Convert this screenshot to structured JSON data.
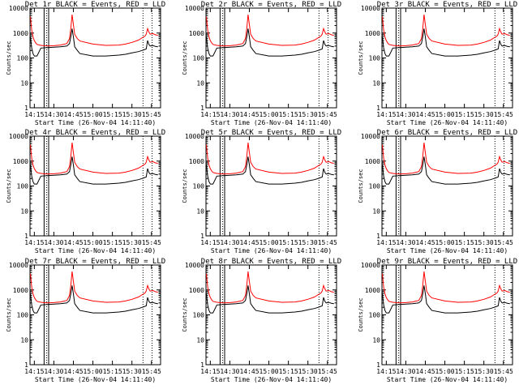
{
  "chart_data": {
    "type": "line",
    "x_units": "time (HH:MM, 26-Nov-04)",
    "xlim": [
      "14:11:40",
      "15:52:00"
    ],
    "ylim": [
      1,
      10000
    ],
    "y_scale": "log",
    "y_ticks": [
      "1",
      "10",
      "100",
      "1000",
      "10000"
    ],
    "x_ticks": [
      "14:15",
      "14:30",
      "14:45",
      "15:00",
      "15:15",
      "15:30",
      "15:45"
    ],
    "ylabel": "Counts/sec",
    "xlabel": "Start Time (26-Nov-04 14:11:40)",
    "grid": false,
    "legend": "in title",
    "series_colors": {
      "events": "#000000",
      "lld": "#ff0000"
    },
    "markers": {
      "solid": [
        "14:22:30",
        "14:26:00"
      ],
      "dotted": [
        "14:24:30",
        "15:38:30",
        "15:45:30"
      ]
    },
    "sample_times": [
      "14:12",
      "14:13",
      "14:14",
      "14:15",
      "14:16",
      "14:17",
      "14:20",
      "14:25",
      "14:30",
      "14:35",
      "14:40",
      "14:42",
      "14:43",
      "14:44",
      "14:45",
      "14:46",
      "14:48",
      "14:50",
      "15:00",
      "15:10",
      "15:20",
      "15:25",
      "15:30",
      "15:35",
      "15:38",
      "15:40",
      "15:41",
      "15:42",
      "15:43",
      "15:44",
      "15:46",
      "15:48",
      "15:50"
    ],
    "panels": [
      {
        "title": "Det 1r BLACK = Events, RED = LLD",
        "lld": [
          4500,
          1300,
          700,
          500,
          400,
          350,
          320,
          300,
          310,
          330,
          380,
          600,
          1500,
          5500,
          2200,
          900,
          600,
          480,
          360,
          320,
          330,
          360,
          420,
          520,
          650,
          750,
          900,
          1500,
          1100,
          900,
          950,
          850,
          800
        ],
        "events": [
          700,
          250,
          150,
          120,
          120,
          120,
          250,
          260,
          270,
          280,
          300,
          380,
          700,
          1500,
          700,
          280,
          200,
          150,
          120,
          120,
          130,
          140,
          160,
          180,
          200,
          220,
          230,
          500,
          350,
          300,
          320,
          290,
          280
        ]
      },
      {
        "title": "Det 2r BLACK = Events, RED = LLD",
        "lld": [
          4500,
          1300,
          700,
          500,
          400,
          350,
          320,
          300,
          310,
          330,
          380,
          600,
          1500,
          5500,
          2200,
          900,
          600,
          480,
          360,
          320,
          330,
          360,
          420,
          520,
          650,
          750,
          900,
          1500,
          1100,
          900,
          950,
          850,
          800
        ],
        "events": [
          700,
          250,
          150,
          120,
          120,
          120,
          250,
          260,
          270,
          280,
          300,
          380,
          700,
          1500,
          700,
          280,
          200,
          150,
          120,
          120,
          130,
          140,
          160,
          180,
          200,
          220,
          230,
          500,
          350,
          300,
          320,
          290,
          280
        ]
      },
      {
        "title": "Det 3r BLACK = Events, RED = LLD",
        "lld": [
          4500,
          1300,
          700,
          500,
          400,
          350,
          320,
          300,
          310,
          330,
          380,
          600,
          1500,
          5500,
          2200,
          900,
          600,
          480,
          360,
          320,
          330,
          360,
          420,
          520,
          650,
          750,
          900,
          1500,
          1100,
          900,
          950,
          850,
          800
        ],
        "events": [
          700,
          250,
          150,
          120,
          120,
          120,
          250,
          260,
          270,
          280,
          300,
          380,
          700,
          1500,
          700,
          280,
          200,
          150,
          120,
          120,
          130,
          140,
          160,
          180,
          200,
          220,
          230,
          500,
          350,
          300,
          320,
          290,
          280
        ]
      },
      {
        "title": "Det 4r BLACK = Events, RED = LLD",
        "lld": [
          4500,
          1300,
          700,
          500,
          400,
          350,
          320,
          300,
          310,
          330,
          380,
          600,
          1500,
          5500,
          2200,
          900,
          600,
          480,
          360,
          320,
          330,
          360,
          420,
          520,
          650,
          750,
          900,
          1500,
          1100,
          900,
          950,
          850,
          800
        ],
        "events": [
          700,
          250,
          150,
          120,
          120,
          120,
          250,
          260,
          270,
          280,
          300,
          380,
          700,
          1500,
          700,
          280,
          200,
          150,
          120,
          120,
          130,
          140,
          160,
          180,
          200,
          220,
          230,
          500,
          350,
          300,
          320,
          290,
          280
        ]
      },
      {
        "title": "Det 5r BLACK = Events, RED = LLD",
        "lld": [
          4500,
          1300,
          700,
          500,
          400,
          350,
          320,
          300,
          310,
          330,
          380,
          600,
          1500,
          5500,
          2200,
          900,
          600,
          480,
          360,
          320,
          330,
          360,
          420,
          520,
          650,
          750,
          900,
          1500,
          1100,
          900,
          950,
          850,
          800
        ],
        "events": [
          700,
          250,
          150,
          120,
          120,
          120,
          250,
          260,
          270,
          280,
          300,
          380,
          700,
          1500,
          700,
          280,
          200,
          150,
          120,
          120,
          130,
          140,
          160,
          180,
          200,
          220,
          230,
          500,
          350,
          300,
          320,
          290,
          280
        ]
      },
      {
        "title": "Det 6r BLACK = Events, RED = LLD",
        "lld": [
          4500,
          1300,
          700,
          500,
          400,
          350,
          320,
          300,
          310,
          330,
          380,
          600,
          1500,
          5500,
          2200,
          900,
          600,
          480,
          360,
          320,
          330,
          360,
          420,
          520,
          650,
          750,
          900,
          1500,
          1100,
          900,
          950,
          850,
          800
        ],
        "events": [
          700,
          250,
          150,
          120,
          120,
          120,
          250,
          260,
          270,
          280,
          300,
          380,
          700,
          1500,
          700,
          280,
          200,
          150,
          120,
          120,
          130,
          140,
          160,
          180,
          200,
          220,
          230,
          500,
          350,
          300,
          320,
          290,
          280
        ]
      },
      {
        "title": "Det 7r BLACK = Events, RED = LLD",
        "lld": [
          4500,
          1300,
          700,
          500,
          400,
          350,
          320,
          300,
          310,
          330,
          380,
          600,
          1500,
          5500,
          2200,
          900,
          600,
          480,
          360,
          320,
          330,
          360,
          420,
          520,
          650,
          750,
          900,
          1500,
          1100,
          900,
          950,
          850,
          800
        ],
        "events": [
          700,
          250,
          150,
          120,
          120,
          120,
          250,
          260,
          270,
          280,
          300,
          380,
          700,
          1500,
          700,
          280,
          200,
          150,
          120,
          120,
          130,
          140,
          160,
          180,
          200,
          220,
          230,
          500,
          350,
          300,
          320,
          290,
          280
        ]
      },
      {
        "title": "Det 8r BLACK = Events, RED = LLD",
        "lld": [
          4500,
          1300,
          700,
          500,
          400,
          350,
          320,
          300,
          310,
          330,
          380,
          600,
          1500,
          5500,
          2200,
          900,
          600,
          480,
          360,
          320,
          330,
          360,
          420,
          520,
          650,
          750,
          900,
          1500,
          1100,
          900,
          950,
          850,
          800
        ],
        "events": [
          700,
          250,
          150,
          120,
          120,
          120,
          250,
          260,
          270,
          280,
          300,
          380,
          700,
          1500,
          700,
          280,
          200,
          150,
          120,
          120,
          130,
          140,
          160,
          180,
          200,
          220,
          230,
          500,
          350,
          300,
          320,
          290,
          280
        ]
      },
      {
        "title": "Det 9r BLACK = Events, RED = LLD",
        "lld": [
          4500,
          1300,
          700,
          500,
          400,
          350,
          320,
          300,
          310,
          330,
          380,
          600,
          1500,
          5500,
          2200,
          900,
          600,
          480,
          360,
          320,
          330,
          360,
          420,
          520,
          650,
          750,
          900,
          1500,
          1100,
          900,
          950,
          850,
          800
        ],
        "events": [
          700,
          250,
          150,
          120,
          120,
          120,
          250,
          260,
          270,
          280,
          300,
          380,
          700,
          1500,
          700,
          280,
          200,
          150,
          120,
          120,
          130,
          140,
          160,
          180,
          200,
          220,
          230,
          500,
          350,
          300,
          320,
          290,
          280
        ]
      }
    ]
  }
}
